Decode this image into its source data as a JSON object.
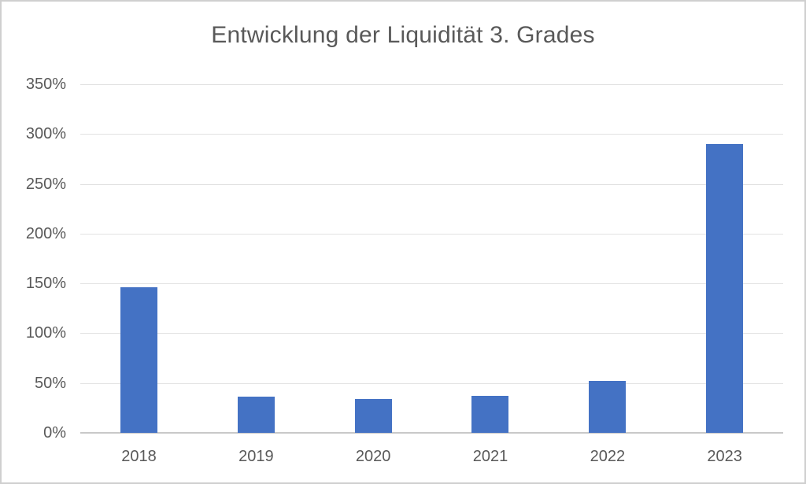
{
  "window": {
    "background_color": "#FFFFFF",
    "border_color": "#CFCFCF"
  },
  "chart_data": {
    "type": "bar",
    "title": "Entwicklung der Liquidität 3. Grades",
    "categories": [
      "2018",
      "2019",
      "2020",
      "2021",
      "2022",
      "2023"
    ],
    "values": [
      146,
      36,
      34,
      37,
      52,
      290
    ],
    "unit": "%",
    "xlabel": "",
    "ylabel": "",
    "ylim": [
      0,
      350
    ],
    "ytick_step": 50,
    "ytick_labels": [
      "0%",
      "50%",
      "100%",
      "150%",
      "200%",
      "250%",
      "300%",
      "350%"
    ],
    "grid": true,
    "legend_position": "none",
    "bar_color": "#4472C4",
    "title_color": "#595959",
    "axis_label_color": "#595959",
    "gridline_color": "#E2E2E2",
    "axis_line_color": "#C9C9C9"
  }
}
